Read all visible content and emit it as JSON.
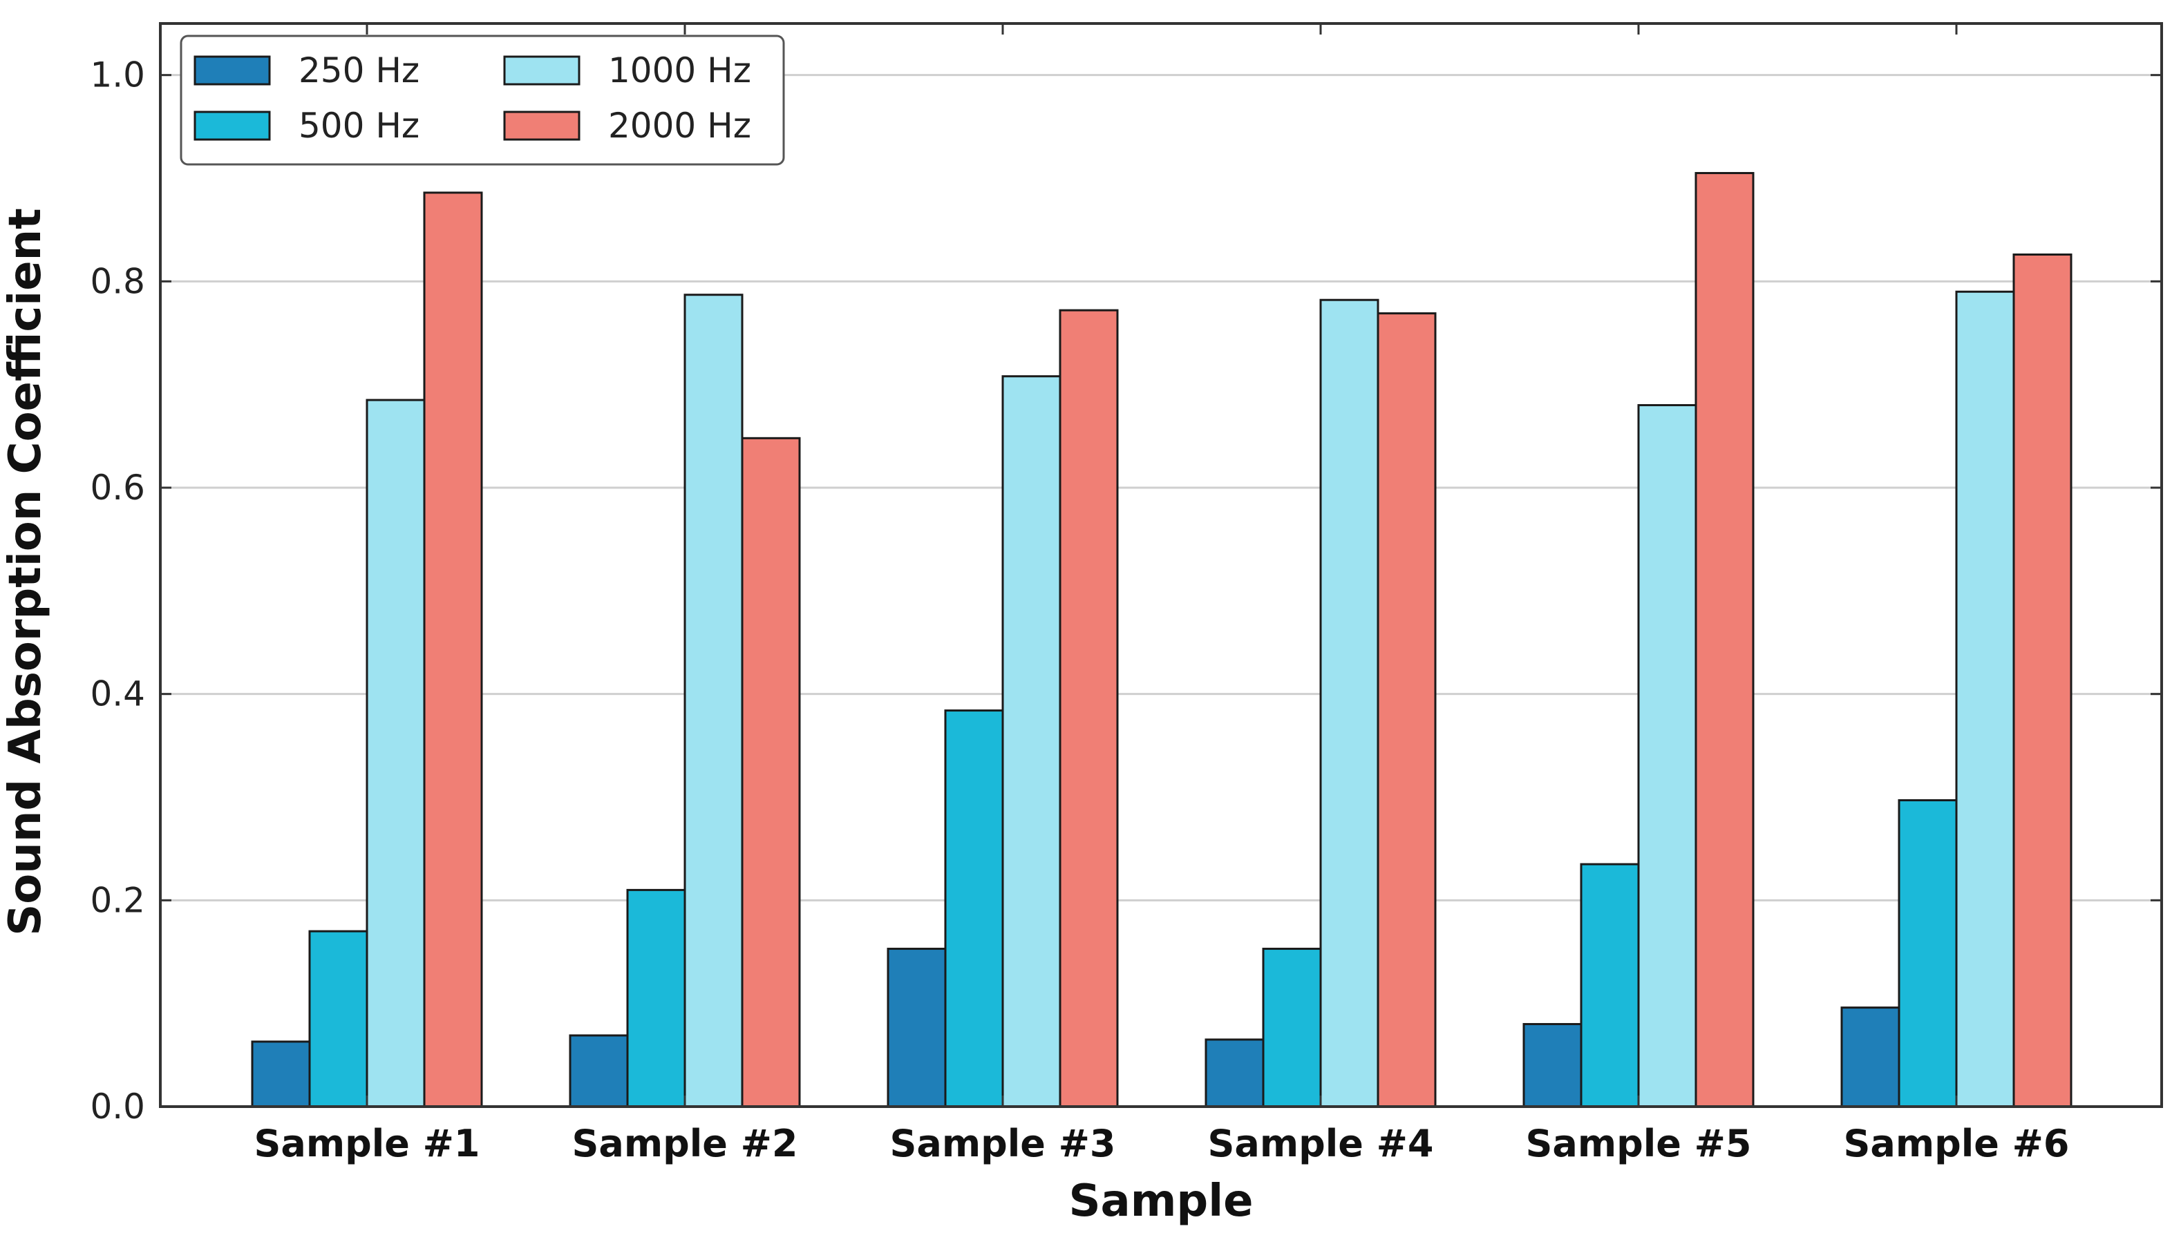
{
  "chart_data": {
    "type": "bar",
    "title": "",
    "xlabel": "Sample",
    "ylabel": "Sound Absorption Coefficient",
    "categories": [
      "Sample #1",
      "Sample #2",
      "Sample #3",
      "Sample #4",
      "Sample #5",
      "Sample #6"
    ],
    "series": [
      {
        "name": "250 Hz",
        "color": "#1f7fb8",
        "values": [
          0.063,
          0.069,
          0.153,
          0.065,
          0.08,
          0.096
        ]
      },
      {
        "name": "500 Hz",
        "color": "#1bb9d9",
        "values": [
          0.17,
          0.21,
          0.384,
          0.153,
          0.235,
          0.297
        ]
      },
      {
        "name": "1000 Hz",
        "color": "#9ee3f1",
        "values": [
          0.685,
          0.787,
          0.708,
          0.782,
          0.68,
          0.79
        ]
      },
      {
        "name": "2000 Hz",
        "color": "#f07f75",
        "values": [
          0.886,
          0.648,
          0.772,
          0.769,
          0.905,
          0.826
        ]
      }
    ],
    "ylim": [
      0,
      1.05
    ],
    "yticks": [
      "0.0",
      "0.2",
      "0.4",
      "0.6",
      "0.8",
      "1.0"
    ],
    "grid": "horizontal",
    "legend": {
      "placement": "top-left",
      "columns": 2
    }
  }
}
